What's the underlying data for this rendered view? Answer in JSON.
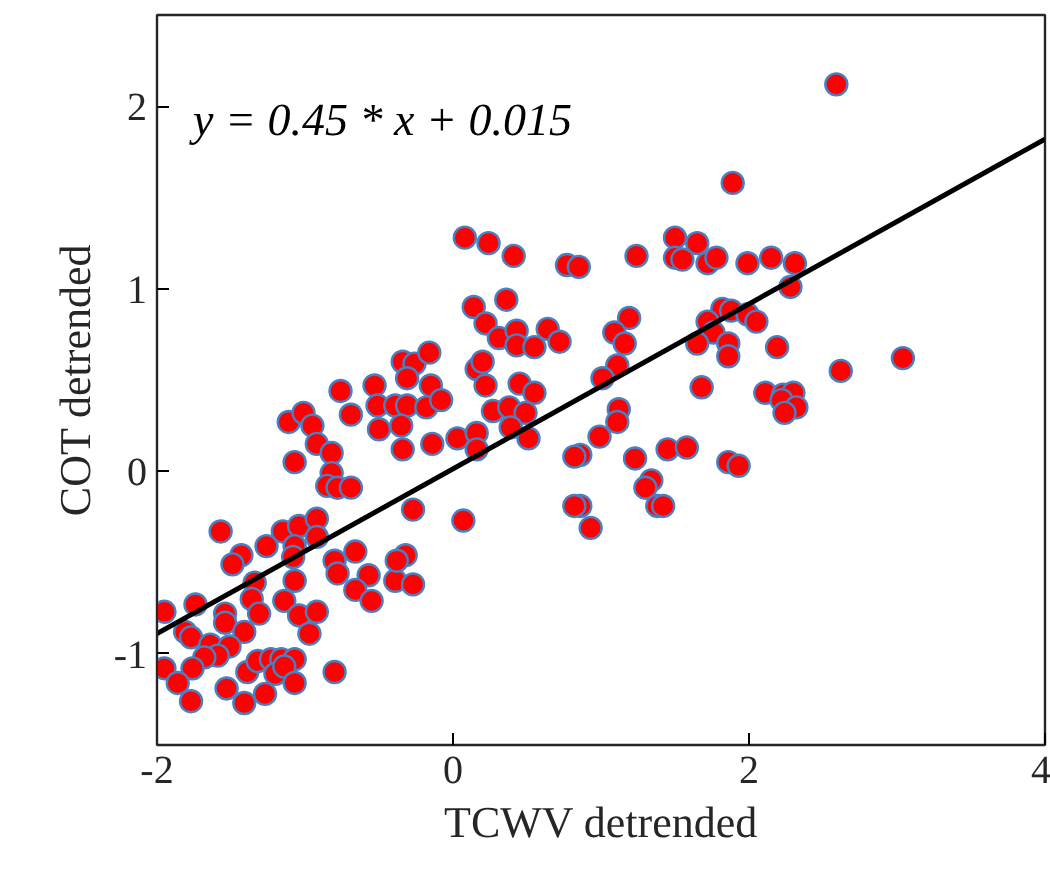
{
  "chart_data": {
    "type": "scatter",
    "xlabel": "TCWV detrended",
    "ylabel": "COT detrended",
    "annotations": [
      "y = 0.45 * x + 0.015"
    ],
    "xlim": [
      -2,
      4
    ],
    "ylim": [
      -1.5,
      2.5
    ],
    "xticks": [
      -2,
      0,
      2,
      4
    ],
    "yticks": [
      -1,
      0,
      1,
      2
    ],
    "grid": false,
    "series": [
      {
        "marker": "circle",
        "color": "#ff0000",
        "x": [
          0.08,
          0.24,
          0.41,
          0.77,
          0.85,
          0.36,
          0.14,
          0.22,
          0.31,
          0.43,
          0.43,
          0.55,
          0.64,
          0.72,
          -0.34,
          -0.26,
          -0.16,
          -0.31,
          0.16,
          0.2,
          0.22,
          0.45,
          -0.76,
          -0.53,
          -0.15,
          0.55,
          2.59,
          1.89,
          1.5,
          1.65,
          1.24,
          1.5,
          1.55,
          1.72,
          1.78,
          1.99,
          2.15,
          2.31,
          2.28,
          1.82,
          1.88,
          1.99,
          2.05,
          1.72,
          1.76,
          1.65,
          1.86,
          1.86,
          1.19,
          1.09,
          1.16,
          1.11,
          1.01,
          2.19,
          2.62,
          3.04,
          1.68,
          2.11,
          2.23,
          2.3,
          2.22,
          2.32,
          2.24,
          1.12,
          1.11,
          0.99,
          1.23,
          1.45,
          1.58,
          1.86,
          1.93,
          1.34,
          1.3,
          1.38,
          1.42,
          0.93,
          0.86,
          0.86,
          -0.51,
          -0.39,
          -0.31,
          -0.18,
          -0.08,
          -0.69,
          -0.5,
          -0.35,
          -0.34,
          -0.14,
          0.03,
          0.16,
          0.16,
          0.27,
          0.38,
          0.49,
          0.39,
          0.51,
          0.82,
          0.82,
          0.07,
          -0.27,
          -1.11,
          -1.01,
          -0.95,
          -0.92,
          -0.82,
          -1.07,
          -0.82,
          -0.85,
          -0.78,
          -0.69,
          -1.57,
          -1.43,
          -1.49,
          -1.26,
          -1.15,
          -1.04,
          -0.92,
          -0.92,
          -1.07,
          -1.08,
          -0.66,
          -0.8,
          -0.78,
          -1.07,
          -0.57,
          -0.66,
          -0.55,
          -0.39,
          -0.32,
          -0.38,
          -0.27,
          -1.34,
          -1.36,
          -1.31,
          -1.14,
          -1.04,
          -0.92,
          -0.97,
          -1.74,
          -1.95,
          -1.54,
          -1.54,
          -1.41,
          -1.81,
          -1.77,
          -1.64,
          -1.51,
          -1.59,
          -1.68,
          -1.95,
          -1.76,
          -1.86,
          -1.77,
          -1.53,
          -1.41,
          -1.27,
          -1.39,
          -1.32,
          -1.23,
          -1.16,
          -1.07,
          -1.2,
          -1.14,
          -1.07,
          -0.8
        ],
        "values": [
          1.28,
          1.25,
          1.18,
          1.13,
          1.12,
          0.94,
          0.9,
          0.81,
          0.73,
          0.77,
          0.69,
          0.68,
          0.78,
          0.71,
          0.6,
          0.59,
          0.65,
          0.51,
          0.56,
          0.6,
          0.47,
          0.48,
          0.44,
          0.47,
          0.47,
          0.43,
          2.12,
          1.58,
          1.28,
          1.25,
          1.18,
          1.17,
          1.16,
          1.14,
          1.17,
          1.14,
          1.17,
          1.14,
          1.01,
          0.89,
          0.88,
          0.86,
          0.82,
          0.82,
          0.76,
          0.7,
          0.7,
          0.63,
          0.84,
          0.76,
          0.7,
          0.58,
          0.51,
          0.68,
          0.55,
          0.62,
          0.46,
          0.43,
          0.42,
          0.43,
          0.39,
          0.35,
          0.32,
          0.34,
          0.27,
          0.19,
          0.07,
          0.12,
          0.13,
          0.05,
          0.03,
          -0.05,
          -0.09,
          -0.19,
          -0.19,
          -0.31,
          -0.19,
          0.09,
          0.36,
          0.36,
          0.36,
          0.35,
          0.39,
          0.31,
          0.23,
          0.25,
          0.12,
          0.15,
          0.18,
          0.21,
          0.12,
          0.33,
          0.35,
          0.32,
          0.24,
          0.18,
          0.08,
          -0.19,
          -0.27,
          -0.21,
          0.27,
          0.32,
          0.25,
          0.15,
          0.1,
          0.05,
          -0.01,
          -0.08,
          -0.09,
          -0.09,
          -0.33,
          -0.46,
          -0.51,
          -0.41,
          -0.33,
          -0.3,
          -0.26,
          -0.36,
          -0.41,
          -0.47,
          -0.44,
          -0.49,
          -0.56,
          -0.6,
          -0.57,
          -0.65,
          -0.71,
          -0.6,
          -0.46,
          -0.49,
          -0.62,
          -0.61,
          -0.7,
          -0.78,
          -0.71,
          -0.79,
          -0.77,
          -0.89,
          -0.73,
          -0.77,
          -0.78,
          -0.83,
          -0.88,
          -0.88,
          -0.91,
          -0.95,
          -0.96,
          -1.01,
          -1.02,
          -1.08,
          -1.08,
          -1.16,
          -1.26,
          -1.19,
          -1.27,
          -1.22,
          -1.1,
          -1.04,
          -1.03,
          -1.03,
          -1.03,
          -1.11,
          -1.07,
          -1.16,
          -1.1
        ]
      },
      {
        "type": "line",
        "color": "#000000",
        "x": [
          -2,
          4
        ],
        "values": [
          -0.89,
          1.82
        ]
      }
    ]
  }
}
